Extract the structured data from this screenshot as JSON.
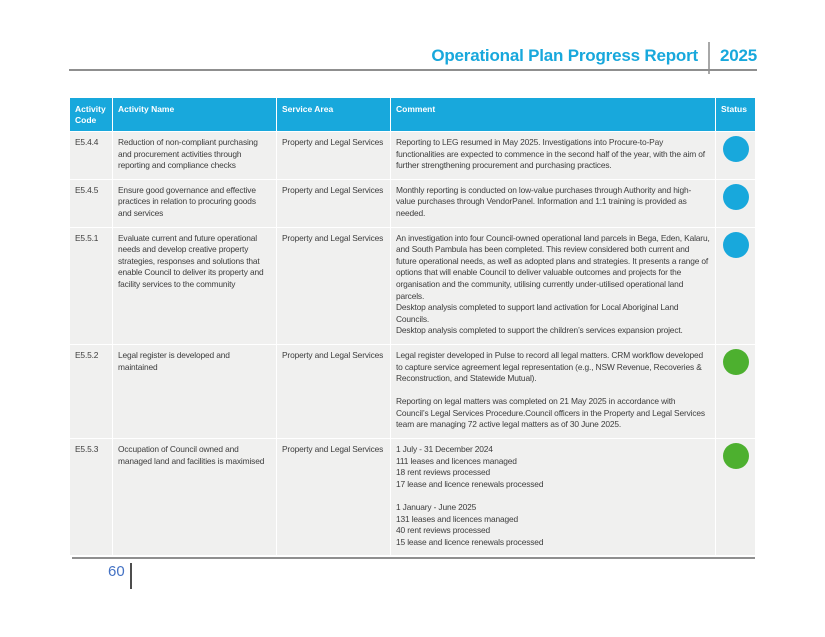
{
  "header": {
    "title": "Operational Plan Progress Report",
    "year": "2025"
  },
  "footer": {
    "page_number": "60"
  },
  "colors": {
    "accent": "#18a8dc",
    "status_blue": "#18a8dc",
    "status_green": "#4db02f",
    "row_bg": "#f0f0ef",
    "rule_gray": "#8f8f8f",
    "page_number": "#4472c4"
  },
  "table": {
    "headers": [
      "Activity Code",
      "Activity Name",
      "Service Area",
      "Comment",
      "Status"
    ],
    "rows": [
      {
        "code": "E5.4.4",
        "name": "Reduction of non-compliant purchasing and procurement activities through reporting and compliance checks",
        "service_area": "Property and Legal Services",
        "comment": [
          "Reporting to LEG resumed in May 2025. Investigations into Procure-to-Pay functionalities are expected to commence in the second half of the year, with the aim of further strengthening procurement and purchasing practices."
        ],
        "status": "blue"
      },
      {
        "code": "E5.4.5",
        "name": "Ensure good governance and effective practices in relation to procuring goods and services",
        "service_area": "Property and Legal Services",
        "comment": [
          "Monthly reporting is conducted on low-value purchases through Authority and high-value purchases through VendorPanel. Information and 1:1 training is provided as needed."
        ],
        "status": "blue"
      },
      {
        "code": "E5.5.1",
        "name": "Evaluate current and future operational needs and develop creative property strategies, responses and solutions that enable Council to deliver its property and facility services to the community",
        "service_area": "Property and Legal Services",
        "comment": [
          "An investigation into four Council-owned operational land parcels in Bega, Eden, Kalaru, and South Pambula has been completed. This review considered both current and future operational needs, as well as adopted plans and strategies. It presents a range of options that will enable Council to deliver valuable outcomes and projects for the organisation and the community, utilising currently under-utilised operational land parcels.",
          "Desktop analysis completed to support land activation for Local Aboriginal Land Councils.",
          "Desktop analysis completed to support the children’s services expansion project."
        ],
        "status": "blue"
      },
      {
        "code": "E5.5.2",
        "name": "Legal register is developed and maintained",
        "service_area": "Property and Legal Services",
        "comment": [
          "Legal register developed in Pulse to record all legal matters. CRM workflow developed to capture service agreement legal representation (e.g., NSW Revenue, Recoveries & Reconstruction, and Statewide Mutual).",
          "",
          "Reporting on legal matters was completed on 21 May 2025 in accordance with Council’s Legal Services Procedure.Council officers in the Property and Legal Services team are managing 72 active legal matters as of 30 June 2025."
        ],
        "status": "green"
      },
      {
        "code": "E5.5.3",
        "name": "Occupation of Council owned and managed land and facilities is maximised",
        "service_area": "Property and Legal Services",
        "comment": [
          "1 July - 31 December 2024",
          "111 leases and licences managed",
          "18 rent reviews processed",
          "17 lease and licence renewals processed",
          "",
          "1 January - June 2025",
          "131 leases and licences managed",
          "40 rent reviews processed",
          "15 lease and licence renewals processed"
        ],
        "status": "green"
      }
    ]
  }
}
